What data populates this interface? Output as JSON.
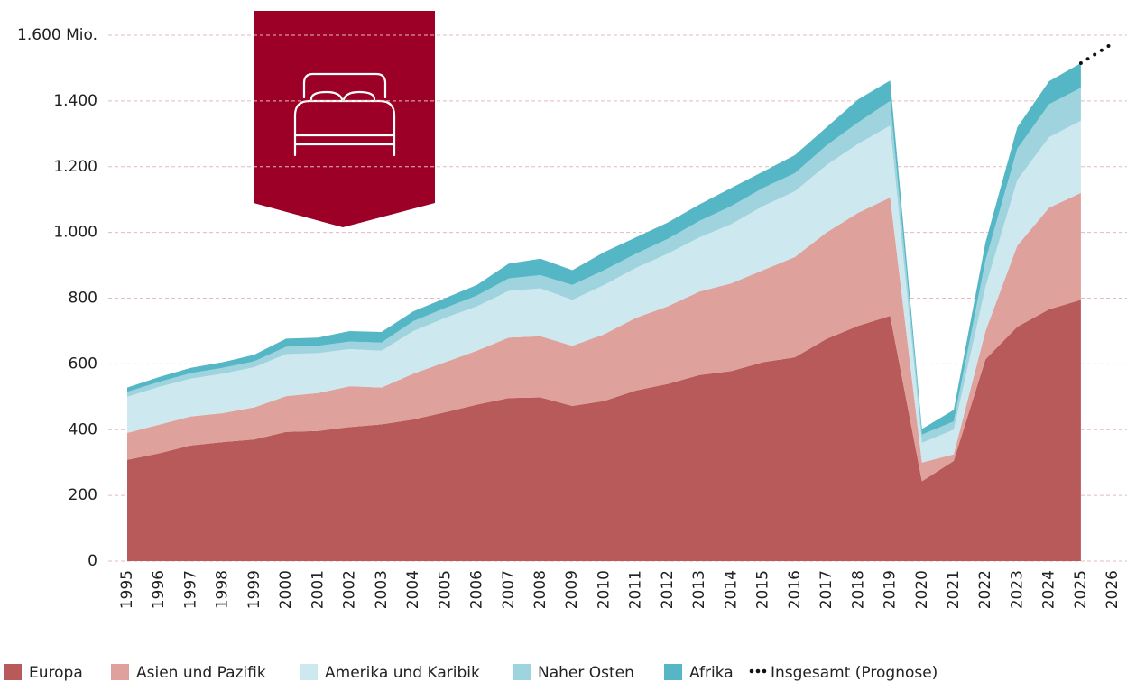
{
  "chart_data": {
    "type": "stacked_area",
    "categories": [
      "1995",
      "1996",
      "1997",
      "1998",
      "1999",
      "2000",
      "2001",
      "2002",
      "2003",
      "2004",
      "2005",
      "2006",
      "2007",
      "2008",
      "2009",
      "2010",
      "2011",
      "2012",
      "2013",
      "2014",
      "2015",
      "2016",
      "2017",
      "2018",
      "2019",
      "2020",
      "2021",
      "2022",
      "2023",
      "2024",
      "2025",
      "2026"
    ],
    "series": [
      {
        "name": "Europa",
        "color": "#b85a5a",
        "values": [
          308,
          328,
          352,
          362,
          370,
          393,
          396,
          408,
          416,
          431,
          453,
          476,
          496,
          498,
          472,
          487,
          519,
          539,
          566,
          578,
          605,
          620,
          676,
          716,
          746,
          243,
          305,
          614,
          713,
          766,
          795,
          null
        ]
      },
      {
        "name": "Asien und Pazifik",
        "color": "#dea19c",
        "values": [
          82,
          87,
          88,
          88,
          98,
          109,
          115,
          124,
          112,
          139,
          152,
          164,
          184,
          186,
          183,
          203,
          221,
          236,
          254,
          267,
          280,
          305,
          324,
          344,
          360,
          57,
          20,
          86,
          247,
          309,
          325,
          null
        ]
      },
      {
        "name": "Amerika und Karibik",
        "color": "#cde8ee",
        "values": [
          110,
          115,
          115,
          120,
          122,
          128,
          122,
          113,
          112,
          130,
          135,
          135,
          142,
          146,
          140,
          150,
          152,
          160,
          165,
          180,
          195,
          200,
          205,
          210,
          219,
          60,
          75,
          135,
          200,
          215,
          220,
          null
        ]
      },
      {
        "name": "Naher Osten",
        "color": "#9fd3dd",
        "values": [
          15,
          15,
          17,
          18,
          18,
          22,
          22,
          23,
          25,
          30,
          30,
          33,
          38,
          40,
          45,
          45,
          43,
          45,
          50,
          55,
          55,
          55,
          60,
          65,
          75,
          25,
          25,
          80,
          95,
          100,
          100,
          null
        ]
      },
      {
        "name": "Afrika",
        "color": "#55b7c5",
        "values": [
          13,
          15,
          16,
          17,
          20,
          25,
          25,
          32,
          32,
          30,
          30,
          32,
          45,
          50,
          45,
          55,
          50,
          50,
          50,
          55,
          50,
          55,
          55,
          70,
          62,
          17,
          35,
          55,
          65,
          70,
          75,
          null
        ]
      },
      {
        "name": "Insgesamt (Prognose)",
        "color": "#111111",
        "type": "line",
        "dotted": true,
        "values": [
          null,
          null,
          null,
          null,
          null,
          null,
          null,
          null,
          null,
          null,
          null,
          null,
          null,
          null,
          null,
          null,
          null,
          null,
          null,
          null,
          null,
          null,
          null,
          null,
          null,
          null,
          null,
          null,
          null,
          null,
          1515,
          1575
        ]
      }
    ],
    "ylim": [
      0,
      1600
    ],
    "yticks": [
      0,
      200,
      400,
      600,
      800,
      {
        "value": 1000,
        "label": "1.000"
      },
      {
        "value": 1200,
        "label": "1.200"
      },
      {
        "value": 1400,
        "label": "1.400"
      },
      {
        "value": 1600,
        "label": "1.600 Mio."
      }
    ],
    "grid": true
  }
}
